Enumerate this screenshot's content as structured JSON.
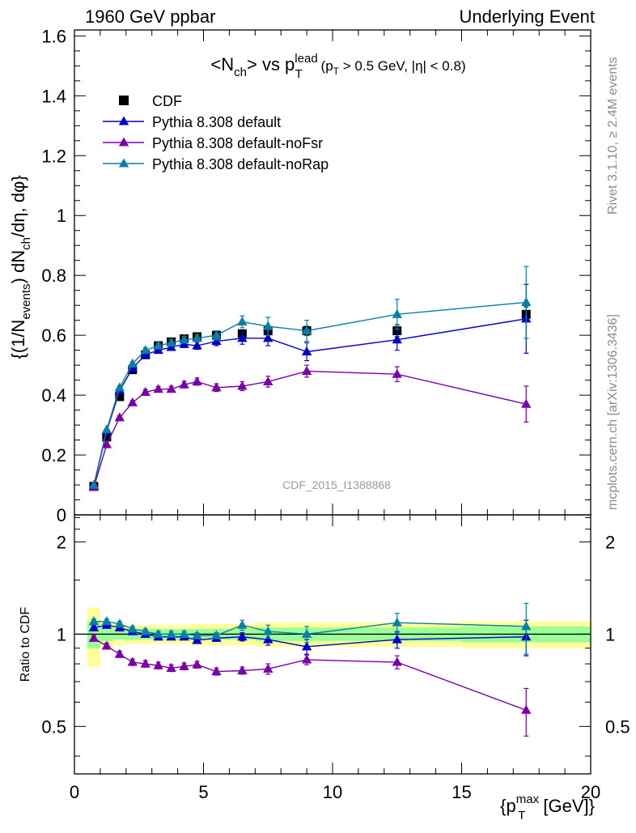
{
  "header": {
    "left": "1960 GeV ppbar",
    "right": "Underlying Event"
  },
  "side_labels": {
    "rivet": "Rivet 3.1.10, ≥ 2.4M events",
    "mcplots": "mcplots.cern.ch [arXiv:1306.3436]"
  },
  "chart_data": [
    {
      "type": "line",
      "title": "<N_ch> vs p_T^lead (p_T > 0.5 GeV, |η| < 0.8)",
      "ylabel": "{(1/N_events) dN_ch/dη, dφ}",
      "watermark": "CDF_2015_I1388868",
      "xlim": [
        0,
        20
      ],
      "ylim": [
        0,
        1.62
      ],
      "yticks": [
        0,
        0.2,
        0.4,
        0.6,
        0.8,
        1,
        1.2,
        1.4,
        1.6
      ],
      "ytick_labels": [
        "0",
        "0.2",
        "0.4",
        "0.6",
        "0.8",
        "1",
        "1.2",
        "1.4",
        "1.6"
      ],
      "legend_position": "top-left",
      "x": [
        0.75,
        1.25,
        1.75,
        2.25,
        2.75,
        3.25,
        3.75,
        4.25,
        4.75,
        5.5,
        6.5,
        7.5,
        9.0,
        12.5,
        17.5
      ],
      "series": [
        {
          "name": "CDF",
          "marker": "square",
          "color": "#000000",
          "values": [
            0.095,
            0.26,
            0.395,
            0.485,
            0.535,
            0.565,
            0.578,
            0.588,
            0.595,
            0.6,
            0.605,
            0.615,
            0.615,
            0.615,
            0.67
          ],
          "errors": [
            0.004,
            0.006,
            0.006,
            0.007,
            0.007,
            0.008,
            0.008,
            0.008,
            0.009,
            0.01,
            0.012,
            0.014,
            0.015,
            0.02,
            0.025
          ]
        },
        {
          "name": "Pythia 8.308 default",
          "marker": "triangle",
          "color": "#0000cc",
          "values": [
            0.095,
            0.28,
            0.415,
            0.49,
            0.535,
            0.55,
            0.56,
            0.57,
            0.565,
            0.58,
            0.59,
            0.59,
            0.545,
            0.585,
            0.655
          ],
          "errors": [
            0.003,
            0.005,
            0.006,
            0.007,
            0.008,
            0.009,
            0.01,
            0.011,
            0.012,
            0.015,
            0.02,
            0.025,
            0.03,
            0.035,
            0.115
          ]
        },
        {
          "name": "Pythia 8.308 default-noFsr",
          "marker": "triangle",
          "color": "#7a00aa",
          "values": [
            0.092,
            0.235,
            0.325,
            0.375,
            0.41,
            0.42,
            0.42,
            0.435,
            0.445,
            0.425,
            0.43,
            0.445,
            0.48,
            0.47,
            0.37
          ],
          "errors": [
            0.003,
            0.005,
            0.006,
            0.007,
            0.008,
            0.009,
            0.01,
            0.011,
            0.012,
            0.013,
            0.015,
            0.018,
            0.02,
            0.025,
            0.06
          ]
        },
        {
          "name": "Pythia 8.308 default-noRap",
          "marker": "triangle",
          "color": "#0a7fa6",
          "values": [
            0.1,
            0.285,
            0.425,
            0.505,
            0.55,
            0.565,
            0.575,
            0.585,
            0.59,
            0.6,
            0.645,
            0.63,
            0.615,
            0.67,
            0.71
          ],
          "errors": [
            0.003,
            0.005,
            0.006,
            0.007,
            0.008,
            0.009,
            0.01,
            0.011,
            0.012,
            0.015,
            0.02,
            0.03,
            0.035,
            0.05,
            0.12
          ]
        }
      ]
    },
    {
      "type": "line",
      "ylabel": "Ratio to CDF",
      "xlabel": "{p_T^max [GeV]}",
      "xlim": [
        0,
        20
      ],
      "ylim": [
        0.35,
        2.45
      ],
      "y_scale": "log",
      "yticks": [
        0.5,
        1,
        2
      ],
      "ytick_labels": [
        "0.5",
        "1",
        "2"
      ],
      "xticks": [
        0,
        5,
        10,
        15,
        20
      ],
      "xtick_labels": [
        "0",
        "5",
        "10",
        "15",
        "20"
      ],
      "reference_line": 1,
      "bins": [
        [
          0.5,
          1.0
        ],
        [
          1.0,
          1.5
        ],
        [
          1.5,
          2.0
        ],
        [
          2.0,
          2.5
        ],
        [
          2.5,
          3.0
        ],
        [
          3.0,
          3.5
        ],
        [
          3.5,
          4.0
        ],
        [
          4.0,
          4.5
        ],
        [
          4.5,
          5.0
        ],
        [
          5.0,
          6.0
        ],
        [
          6.0,
          7.0
        ],
        [
          7.0,
          8.0
        ],
        [
          8.0,
          10.0
        ],
        [
          10.0,
          15.0
        ],
        [
          15.0,
          20.0
        ]
      ],
      "band_outer": [
        0.22,
        0.1,
        0.08,
        0.07,
        0.07,
        0.07,
        0.07,
        0.07,
        0.08,
        0.08,
        0.08,
        0.09,
        0.09,
        0.09,
        0.1
      ],
      "band_inner": [
        0.1,
        0.05,
        0.04,
        0.04,
        0.04,
        0.04,
        0.04,
        0.04,
        0.04,
        0.04,
        0.04,
        0.05,
        0.05,
        0.05,
        0.06
      ],
      "band_outer_color": "#ffff99",
      "band_inner_color": "#99ff99",
      "x": [
        0.75,
        1.25,
        1.75,
        2.25,
        2.75,
        3.25,
        3.75,
        4.25,
        4.75,
        5.5,
        6.5,
        7.5,
        9.0,
        12.5,
        17.5
      ],
      "series": [
        {
          "name": "Pythia 8.308 default",
          "color": "#0000cc",
          "values": [
            1.05,
            1.07,
            1.05,
            1.02,
            1.0,
            0.98,
            0.98,
            0.98,
            0.955,
            0.97,
            0.98,
            0.96,
            0.91,
            0.96,
            0.98
          ],
          "errors": [
            0.02,
            0.02,
            0.02,
            0.02,
            0.02,
            0.02,
            0.02,
            0.02,
            0.02,
            0.02,
            0.03,
            0.04,
            0.05,
            0.06,
            0.13
          ]
        },
        {
          "name": "Pythia 8.308 default-noFsr",
          "color": "#7a00aa",
          "values": [
            0.97,
            0.915,
            0.86,
            0.81,
            0.8,
            0.79,
            0.775,
            0.785,
            0.795,
            0.755,
            0.76,
            0.77,
            0.825,
            0.81,
            0.565
          ],
          "errors": [
            0.02,
            0.02,
            0.02,
            0.02,
            0.02,
            0.02,
            0.02,
            0.02,
            0.02,
            0.02,
            0.02,
            0.03,
            0.03,
            0.04,
            0.1
          ]
        },
        {
          "name": "Pythia 8.308 default-noRap",
          "color": "#0a7fa6",
          "values": [
            1.1,
            1.1,
            1.08,
            1.04,
            1.02,
            1.0,
            1.0,
            1.0,
            0.99,
            0.99,
            1.07,
            1.02,
            1.0,
            1.09,
            1.06
          ],
          "errors": [
            0.02,
            0.02,
            0.02,
            0.02,
            0.02,
            0.02,
            0.02,
            0.02,
            0.02,
            0.02,
            0.04,
            0.05,
            0.06,
            0.08,
            0.2
          ]
        }
      ]
    }
  ]
}
